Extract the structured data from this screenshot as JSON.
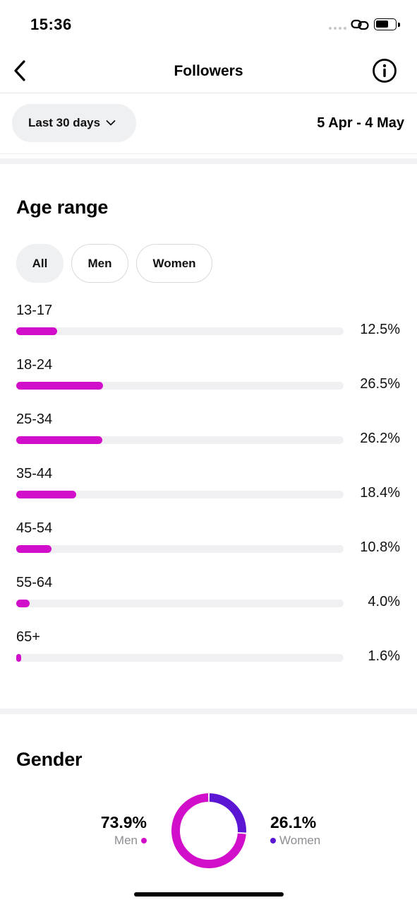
{
  "status_bar": {
    "time": "15:36"
  },
  "nav": {
    "title": "Followers"
  },
  "filter": {
    "range_label": "Last 30 days",
    "date_range": "5 Apr - 4 May"
  },
  "age_section": {
    "title": "Age range",
    "chips": [
      {
        "label": "All",
        "active": true
      },
      {
        "label": "Men",
        "active": false
      },
      {
        "label": "Women",
        "active": false
      }
    ],
    "rows": [
      {
        "label": "13-17",
        "value": 12.5,
        "pct": "12.5%"
      },
      {
        "label": "18-24",
        "value": 26.5,
        "pct": "26.5%"
      },
      {
        "label": "25-34",
        "value": 26.2,
        "pct": "26.2%"
      },
      {
        "label": "35-44",
        "value": 18.4,
        "pct": "18.4%"
      },
      {
        "label": "45-54",
        "value": 10.8,
        "pct": "10.8%"
      },
      {
        "label": "55-64",
        "value": 4.0,
        "pct": "4.0%"
      },
      {
        "label": "65+",
        "value": 1.6,
        "pct": "1.6%"
      }
    ]
  },
  "gender_section": {
    "title": "Gender",
    "men": {
      "label": "Men",
      "pct": "73.9%",
      "value": 73.9,
      "color": "#d10fca"
    },
    "women": {
      "label": "Women",
      "pct": "26.1%",
      "value": 26.1,
      "color": "#5b16d4"
    }
  },
  "colors": {
    "accent": "#d10fca",
    "track": "#f0f0f2",
    "secondary": "#5b16d4"
  }
}
